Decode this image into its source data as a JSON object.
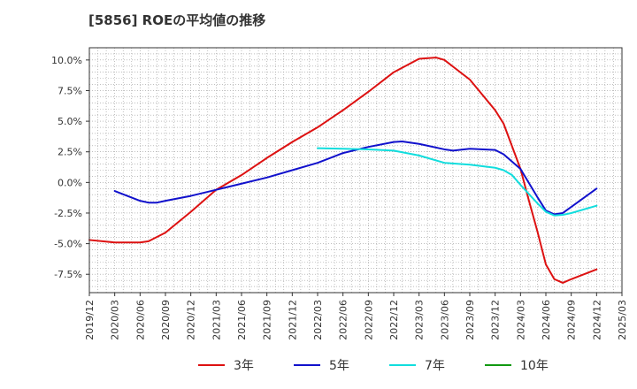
{
  "chart_data": {
    "type": "line",
    "title": "[5856]  ROEの平均値の推移",
    "xlabel": "",
    "ylabel": "",
    "x_ticks": [
      "2019/12",
      "2020/03",
      "2020/06",
      "2020/09",
      "2020/12",
      "2021/03",
      "2021/06",
      "2021/09",
      "2021/12",
      "2022/03",
      "2022/06",
      "2022/09",
      "2022/12",
      "2023/03",
      "2023/06",
      "2023/09",
      "2023/12",
      "2024/03",
      "2024/06",
      "2024/09",
      "2024/12",
      "2025/03"
    ],
    "y_ticks": [
      10.0,
      7.5,
      5.0,
      2.5,
      0.0,
      -2.5,
      -5.0,
      -7.5
    ],
    "y_tick_labels": [
      "10.0%",
      "7.5%",
      "5.0%",
      "2.5%",
      "0.0%",
      "-2.5%",
      "-5.0%",
      "-7.5%"
    ],
    "ylim": [
      -9.0,
      11.0
    ],
    "grid": true,
    "legend_position": "bottom",
    "series": [
      {
        "name": "3年",
        "color": "#dd1111",
        "x": [
          "2019/12",
          "2020/03",
          "2020/06",
          "2020/07",
          "2020/09",
          "2020/12",
          "2021/03",
          "2021/06",
          "2021/09",
          "2021/12",
          "2022/03",
          "2022/06",
          "2022/09",
          "2022/12",
          "2023/03",
          "2023/05",
          "2023/06",
          "2023/09",
          "2023/12",
          "2024/01",
          "2024/03",
          "2024/04",
          "2024/05",
          "2024/06",
          "2024/07",
          "2024/08",
          "2024/09",
          "2024/12"
        ],
        "values": [
          -4.7,
          -4.9,
          -4.9,
          -4.8,
          -4.1,
          -2.4,
          -0.6,
          0.6,
          2.0,
          3.3,
          4.5,
          5.9,
          7.4,
          9.0,
          10.1,
          10.2,
          10.0,
          8.4,
          5.9,
          4.8,
          1.1,
          -1.5,
          -4.0,
          -6.7,
          -7.9,
          -8.2,
          -7.9,
          -7.1
        ]
      },
      {
        "name": "5年",
        "color": "#1111cc",
        "x": [
          "2020/03",
          "2020/06",
          "2020/07",
          "2020/08",
          "2020/09",
          "2020/12",
          "2021/03",
          "2021/06",
          "2021/09",
          "2021/12",
          "2022/03",
          "2022/06",
          "2022/09",
          "2022/12",
          "2023/01",
          "2023/03",
          "2023/06",
          "2023/07",
          "2023/09",
          "2023/12",
          "2024/01",
          "2024/03",
          "2024/05",
          "2024/06",
          "2024/07",
          "2024/08",
          "2024/09",
          "2024/12"
        ],
        "values": [
          -0.7,
          -1.5,
          -1.65,
          -1.65,
          -1.5,
          -1.1,
          -0.6,
          -0.1,
          0.4,
          1.0,
          1.6,
          2.4,
          2.9,
          3.3,
          3.35,
          3.15,
          2.7,
          2.6,
          2.75,
          2.65,
          2.3,
          1.1,
          -1.2,
          -2.3,
          -2.6,
          -2.5,
          -2.0,
          -0.5
        ]
      },
      {
        "name": "7年",
        "color": "#11dddd",
        "x": [
          "2022/03",
          "2022/06",
          "2022/09",
          "2022/12",
          "2023/03",
          "2023/06",
          "2023/09",
          "2023/12",
          "2024/01",
          "2024/02",
          "2024/03",
          "2024/05",
          "2024/06",
          "2024/07",
          "2024/08",
          "2024/09",
          "2024/12"
        ],
        "values": [
          2.8,
          2.75,
          2.7,
          2.6,
          2.2,
          1.6,
          1.45,
          1.2,
          1.0,
          0.6,
          -0.2,
          -1.7,
          -2.4,
          -2.7,
          -2.65,
          -2.5,
          -1.9
        ]
      },
      {
        "name": "10年",
        "color": "#119911",
        "x": [],
        "values": []
      }
    ]
  }
}
